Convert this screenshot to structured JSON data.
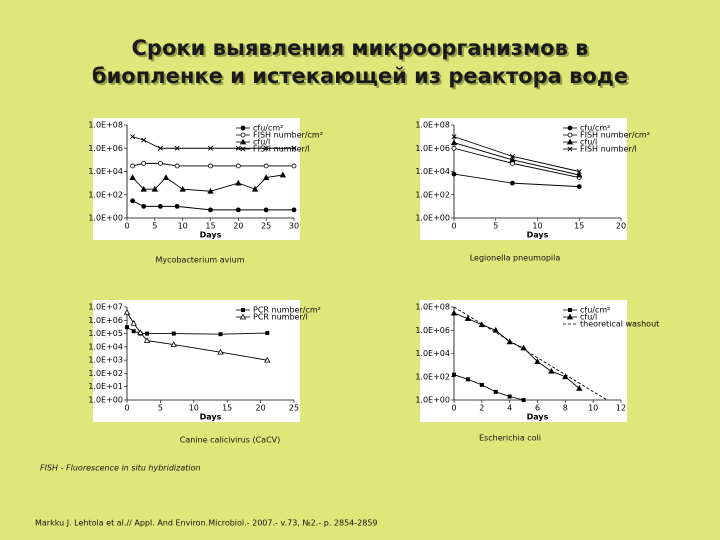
{
  "title_lines": [
    "Сроки выявления микроорганизмов в",
    "биопленке и истекающей из реактора воде"
  ],
  "panels": [
    {
      "caption": "Mycobacterium avium",
      "chart": {
        "type": "line",
        "x_label": "Days",
        "xlim": [
          0,
          30
        ],
        "xticks": [
          0,
          5,
          10,
          15,
          20,
          25,
          30
        ],
        "log_y": true,
        "ylim": [
          1,
          100000000
        ],
        "yticks": [
          {
            "value": 1,
            "label": "1.0E+00"
          },
          {
            "value": 100,
            "label": "1.0E+02"
          },
          {
            "value": 10000,
            "label": "1.0E+04"
          },
          {
            "value": 1000000,
            "label": "1.0E+06"
          },
          {
            "value": 100000000,
            "label": "1.0E+08"
          }
        ],
        "series": [
          {
            "name": "cfu/cm²",
            "color": "#000000",
            "marker": "circle",
            "x": [
              1,
              3,
              6,
              9,
              15,
              20,
              25,
              30
            ],
            "values": [
              30,
              10,
              10,
              10,
              5,
              5,
              5,
              5
            ]
          },
          {
            "name": "FISH number/cm²",
            "color": "#000000",
            "marker": "open-circle",
            "x": [
              1,
              3,
              6,
              9,
              15,
              20,
              25,
              30
            ],
            "values": [
              30000,
              50000,
              50000,
              30000,
              30000,
              30000,
              30000,
              30000
            ]
          },
          {
            "name": "cfu/l",
            "color": "#000000",
            "marker": "triangle",
            "x": [
              1,
              3,
              5,
              7,
              10,
              15,
              20,
              23,
              25,
              28
            ],
            "values": [
              3000,
              300,
              300,
              3000,
              300,
              200,
              1000,
              300,
              3000,
              5000
            ]
          },
          {
            "name": "FISH number/l",
            "color": "#000000",
            "marker": "cross",
            "x": [
              1,
              3,
              6,
              9,
              15,
              20,
              25,
              30
            ],
            "values": [
              10000000,
              5000000,
              1000000,
              1000000,
              1000000,
              1000000,
              1000000,
              1000000
            ]
          }
        ]
      }
    },
    {
      "caption": "Legionella pneumopila",
      "chart": {
        "type": "line",
        "x_label": "Days",
        "xlim": [
          0,
          20
        ],
        "xticks": [
          0,
          5,
          10,
          15,
          20
        ],
        "log_y": true,
        "ylim": [
          1,
          100000000
        ],
        "yticks": [
          {
            "value": 1,
            "label": "1.0E+00"
          },
          {
            "value": 100,
            "label": "1.0E+02"
          },
          {
            "value": 10000,
            "label": "1.0E+04"
          },
          {
            "value": 1000000,
            "label": "1.0E+06"
          },
          {
            "value": 100000000,
            "label": "1.0E+08"
          }
        ],
        "series": [
          {
            "name": "cfu/cm²",
            "color": "#000000",
            "marker": "circle",
            "x": [
              0,
              7,
              15
            ],
            "values": [
              6000,
              1000,
              500
            ]
          },
          {
            "name": "FISH number/cm²",
            "color": "#000000",
            "marker": "open-circle",
            "x": [
              0,
              7,
              15
            ],
            "values": [
              1000000,
              50000,
              3000
            ]
          },
          {
            "name": "cfu/l",
            "color": "#000000",
            "marker": "triangle",
            "x": [
              0,
              7,
              15
            ],
            "values": [
              3000000,
              100000,
              5000
            ]
          },
          {
            "name": "FISH number/l",
            "color": "#000000",
            "marker": "cross",
            "x": [
              0,
              7,
              15
            ],
            "values": [
              10000000,
              200000,
              10000
            ]
          }
        ]
      }
    },
    {
      "caption": "Canine calicivirus (CaCV)",
      "chart": {
        "type": "line",
        "x_label": "Days",
        "xlim": [
          0,
          25
        ],
        "xticks": [
          0,
          5,
          10,
          15,
          20,
          25
        ],
        "log_y": true,
        "ylim": [
          1,
          10000000
        ],
        "yticks": [
          {
            "value": 1,
            "label": "1.0E+00"
          },
          {
            "value": 10,
            "label": "1.0E+01"
          },
          {
            "value": 100,
            "label": "1.0E+02"
          },
          {
            "value": 1000,
            "label": "1.0E+03"
          },
          {
            "value": 10000,
            "label": "1.0E+04"
          },
          {
            "value": 100000,
            "label": "1.0E+05"
          },
          {
            "value": 1000000,
            "label": "1.0E+06"
          },
          {
            "value": 10000000,
            "label": "1.0E+07"
          }
        ],
        "series": [
          {
            "name": "PCR number/cm²",
            "color": "#000000",
            "marker": "square",
            "x": [
              0,
              1,
              2,
              3,
              7,
              14,
              21
            ],
            "values": [
              300000,
              150000,
              100000,
              100000,
              100000,
              90000,
              110000
            ]
          },
          {
            "name": "PCR number/l",
            "color": "#000000",
            "marker": "open-triangle",
            "x": [
              0,
              1,
              2,
              3,
              7,
              14,
              21
            ],
            "values": [
              4000000,
              600000,
              120000,
              30000,
              15000,
              4000,
              1000
            ]
          }
        ]
      }
    },
    {
      "caption": "Escherichia coli",
      "chart": {
        "type": "line",
        "x_label": "Days",
        "xlim": [
          0,
          12
        ],
        "xticks": [
          0,
          2,
          4,
          6,
          8,
          10,
          12
        ],
        "log_y": true,
        "ylim": [
          1,
          100000000
        ],
        "yticks": [
          {
            "value": 1,
            "label": "1.0E+00"
          },
          {
            "value": 100,
            "label": "1.0E+02"
          },
          {
            "value": 10000,
            "label": "1.0E+04"
          },
          {
            "value": 1000000,
            "label": "1.0E+06"
          },
          {
            "value": 100000000,
            "label": "1.0E+08"
          }
        ],
        "series": [
          {
            "name": "cfu/cm²",
            "color": "#000000",
            "marker": "square",
            "x": [
              0,
              1,
              2,
              3,
              4,
              5
            ],
            "values": [
              150,
              60,
              20,
              5,
              2,
              1
            ]
          },
          {
            "name": "cfu/l",
            "color": "#000000",
            "marker": "triangle",
            "x": [
              0,
              1,
              2,
              3,
              4,
              5,
              6,
              7,
              8,
              9
            ],
            "values": [
              30000000,
              10000000,
              3000000,
              1000000,
              100000,
              30000,
              2000,
              300,
              100,
              10
            ]
          },
          {
            "name": "theoretical washout",
            "color": "#000000",
            "marker": "dash",
            "x": [
              0,
              11
            ],
            "values": [
              100000000,
              1
            ]
          }
        ]
      }
    }
  ],
  "note": "FISH - Fluorescence in situ hybridization",
  "citation": "Markku J. Lehtola et al.// Appl. And Environ.Microbiol.- 2007.- v.73, №2.- p. 2854-2859"
}
